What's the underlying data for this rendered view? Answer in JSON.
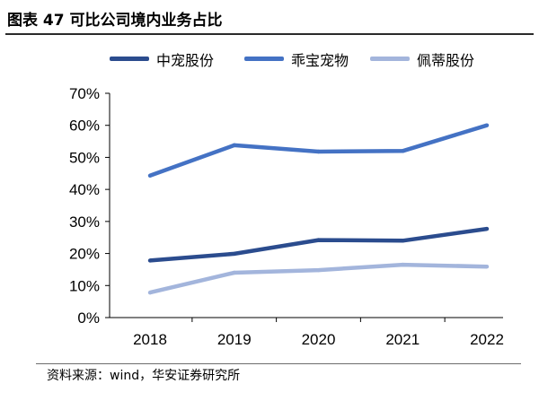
{
  "title": "图表 47 可比公司境内业务占比",
  "source": "资料来源：wind，华安证券研究所",
  "chart_data": {
    "type": "line",
    "categories": [
      "2018",
      "2019",
      "2020",
      "2021",
      "2022"
    ],
    "ylim": [
      0,
      70
    ],
    "yticks": [
      0,
      10,
      20,
      30,
      40,
      50,
      60,
      70
    ],
    "ytick_labels": [
      "0%",
      "10%",
      "20%",
      "30%",
      "40%",
      "50%",
      "60%",
      "70%"
    ],
    "xlabel": "",
    "ylabel": "",
    "legend_position": "top",
    "grid": false,
    "series": [
      {
        "name": "中宠股份",
        "color": "#2b4c8e",
        "values": [
          17.8,
          19.9,
          24.2,
          24.0,
          27.7
        ]
      },
      {
        "name": "乖宝宠物",
        "color": "#4472c4",
        "values": [
          44.3,
          53.8,
          51.8,
          52.0,
          60.0
        ]
      },
      {
        "name": "佩蒂股份",
        "color": "#a3b5dc",
        "values": [
          7.8,
          14.0,
          14.8,
          16.5,
          15.9
        ]
      }
    ]
  }
}
